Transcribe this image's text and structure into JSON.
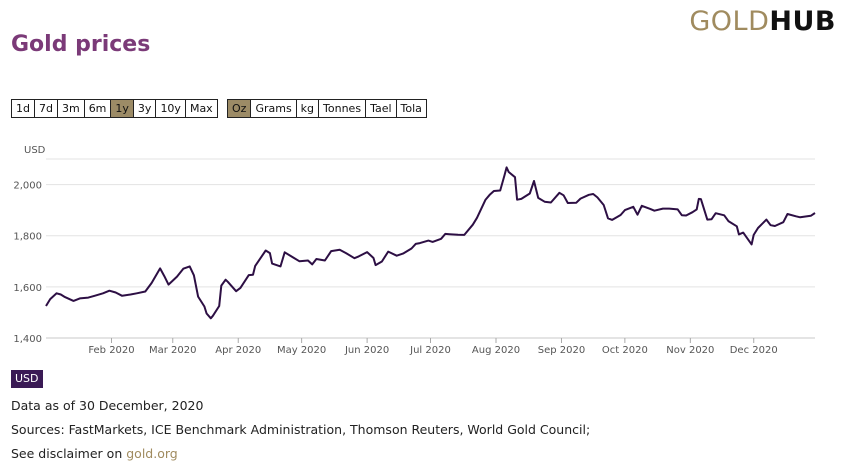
{
  "brand": {
    "gold": "GOLD",
    "hub": "HUB"
  },
  "title": "Gold prices",
  "time_ranges": [
    "1d",
    "7d",
    "3m",
    "6m",
    "1y",
    "3y",
    "10y",
    "Max"
  ],
  "active_time_range": "1y",
  "units": [
    "Oz",
    "Grams",
    "kg",
    "Tonnes",
    "Tael",
    "Tola"
  ],
  "active_unit": "Oz",
  "currency_badge": "USD",
  "data_as_of": "Data as of 30 December, 2020",
  "sources": "Sources: FastMarkets, ICE Benchmark Administration, Thomson Reuters, World Gold Council;",
  "disclaimer_prefix": "See disclaimer on",
  "disclaimer_link": "gold.org",
  "colors": {
    "line": "#2d0f44",
    "accent": "#9c8b66",
    "title": "#7b3a78"
  },
  "chart_data": {
    "type": "line",
    "ylabel": "USD",
    "ylim": [
      1400,
      2100
    ],
    "yticks": [
      1400,
      1600,
      1800,
      2000
    ],
    "ytick_labels": [
      "1,400",
      "1,600",
      "1,800",
      "2,000"
    ],
    "xlim": [
      "2020-01-01",
      "2020-12-30"
    ],
    "xticks": [
      {
        "date": "2020-02-01",
        "label": "Feb 2020"
      },
      {
        "date": "2020-03-01",
        "label": "Mar 2020"
      },
      {
        "date": "2020-04-01",
        "label": "Apr 2020"
      },
      {
        "date": "2020-05-01",
        "label": "May 2020"
      },
      {
        "date": "2020-06-01",
        "label": "Jun 2020"
      },
      {
        "date": "2020-07-01",
        "label": "Jul 2020"
      },
      {
        "date": "2020-08-01",
        "label": "Aug 2020"
      },
      {
        "date": "2020-09-01",
        "label": "Sep 2020"
      },
      {
        "date": "2020-10-01",
        "label": "Oct 2020"
      },
      {
        "date": "2020-11-01",
        "label": "Nov 2020"
      },
      {
        "date": "2020-12-01",
        "label": "Dec 2020"
      }
    ],
    "series": [
      {
        "name": "Gold price (USD/oz)",
        "points": [
          [
            "2020-01-01",
            1525
          ],
          [
            "2020-01-03",
            1552
          ],
          [
            "2020-01-06",
            1575
          ],
          [
            "2020-01-08",
            1570
          ],
          [
            "2020-01-10",
            1560
          ],
          [
            "2020-01-14",
            1545
          ],
          [
            "2020-01-17",
            1555
          ],
          [
            "2020-01-21",
            1558
          ],
          [
            "2020-01-24",
            1565
          ],
          [
            "2020-01-28",
            1575
          ],
          [
            "2020-01-31",
            1585
          ],
          [
            "2020-02-03",
            1578
          ],
          [
            "2020-02-06",
            1565
          ],
          [
            "2020-02-10",
            1570
          ],
          [
            "2020-02-13",
            1575
          ],
          [
            "2020-02-17",
            1582
          ],
          [
            "2020-02-20",
            1615
          ],
          [
            "2020-02-24",
            1672
          ],
          [
            "2020-02-26",
            1642
          ],
          [
            "2020-02-28",
            1609
          ],
          [
            "2020-03-03",
            1640
          ],
          [
            "2020-03-06",
            1671
          ],
          [
            "2020-03-09",
            1680
          ],
          [
            "2020-03-11",
            1645
          ],
          [
            "2020-03-13",
            1562
          ],
          [
            "2020-03-16",
            1523
          ],
          [
            "2020-03-17",
            1496
          ],
          [
            "2020-03-19",
            1477
          ],
          [
            "2020-03-20",
            1487
          ],
          [
            "2020-03-23",
            1525
          ],
          [
            "2020-03-24",
            1605
          ],
          [
            "2020-03-26",
            1628
          ],
          [
            "2020-03-27",
            1620
          ],
          [
            "2020-03-31",
            1583
          ],
          [
            "2020-04-02",
            1596
          ],
          [
            "2020-04-06",
            1646
          ],
          [
            "2020-04-08",
            1647
          ],
          [
            "2020-04-09",
            1682
          ],
          [
            "2020-04-14",
            1742
          ],
          [
            "2020-04-16",
            1732
          ],
          [
            "2020-04-17",
            1691
          ],
          [
            "2020-04-21",
            1680
          ],
          [
            "2020-04-23",
            1735
          ],
          [
            "2020-04-27",
            1715
          ],
          [
            "2020-04-30",
            1700
          ],
          [
            "2020-05-04",
            1703
          ],
          [
            "2020-05-06",
            1688
          ],
          [
            "2020-05-08",
            1709
          ],
          [
            "2020-05-12",
            1703
          ],
          [
            "2020-05-15",
            1740
          ],
          [
            "2020-05-19",
            1745
          ],
          [
            "2020-05-22",
            1732
          ],
          [
            "2020-05-26",
            1712
          ],
          [
            "2020-05-28",
            1719
          ],
          [
            "2020-06-01",
            1736
          ],
          [
            "2020-06-04",
            1713
          ],
          [
            "2020-06-05",
            1685
          ],
          [
            "2020-06-08",
            1699
          ],
          [
            "2020-06-11",
            1738
          ],
          [
            "2020-06-15",
            1722
          ],
          [
            "2020-06-18",
            1730
          ],
          [
            "2020-06-22",
            1750
          ],
          [
            "2020-06-24",
            1768
          ],
          [
            "2020-06-26",
            1771
          ],
          [
            "2020-06-30",
            1781
          ],
          [
            "2020-07-02",
            1776
          ],
          [
            "2020-07-06",
            1788
          ],
          [
            "2020-07-08",
            1807
          ],
          [
            "2020-07-10",
            1806
          ],
          [
            "2020-07-14",
            1804
          ],
          [
            "2020-07-17",
            1803
          ],
          [
            "2020-07-21",
            1843
          ],
          [
            "2020-07-23",
            1870
          ],
          [
            "2020-07-27",
            1940
          ],
          [
            "2020-07-29",
            1960
          ],
          [
            "2020-07-31",
            1975
          ],
          [
            "2020-08-03",
            1977
          ],
          [
            "2020-08-05",
            2035
          ],
          [
            "2020-08-06",
            2067
          ],
          [
            "2020-08-07",
            2049
          ],
          [
            "2020-08-10",
            2029
          ],
          [
            "2020-08-11",
            1941
          ],
          [
            "2020-08-13",
            1944
          ],
          [
            "2020-08-17",
            1965
          ],
          [
            "2020-08-19",
            2014
          ],
          [
            "2020-08-21",
            1948
          ],
          [
            "2020-08-24",
            1933
          ],
          [
            "2020-08-27",
            1930
          ],
          [
            "2020-08-31",
            1968
          ],
          [
            "2020-09-02",
            1958
          ],
          [
            "2020-09-04",
            1928
          ],
          [
            "2020-09-08",
            1929
          ],
          [
            "2020-09-10",
            1945
          ],
          [
            "2020-09-14",
            1960
          ],
          [
            "2020-09-16",
            1963
          ],
          [
            "2020-09-18",
            1950
          ],
          [
            "2020-09-21",
            1920
          ],
          [
            "2020-09-23",
            1868
          ],
          [
            "2020-09-25",
            1862
          ],
          [
            "2020-09-29",
            1881
          ],
          [
            "2020-10-01",
            1900
          ],
          [
            "2020-10-05",
            1913
          ],
          [
            "2020-10-07",
            1882
          ],
          [
            "2020-10-09",
            1917
          ],
          [
            "2020-10-13",
            1905
          ],
          [
            "2020-10-15",
            1898
          ],
          [
            "2020-10-19",
            1906
          ],
          [
            "2020-10-22",
            1906
          ],
          [
            "2020-10-26",
            1903
          ],
          [
            "2020-10-28",
            1880
          ],
          [
            "2020-10-30",
            1879
          ],
          [
            "2020-11-02",
            1892
          ],
          [
            "2020-11-04",
            1903
          ],
          [
            "2020-11-05",
            1944
          ],
          [
            "2020-11-06",
            1943
          ],
          [
            "2020-11-09",
            1863
          ],
          [
            "2020-11-11",
            1864
          ],
          [
            "2020-11-13",
            1888
          ],
          [
            "2020-11-17",
            1880
          ],
          [
            "2020-11-19",
            1857
          ],
          [
            "2020-11-23",
            1837
          ],
          [
            "2020-11-24",
            1805
          ],
          [
            "2020-11-26",
            1812
          ],
          [
            "2020-11-30",
            1766
          ],
          [
            "2020-12-01",
            1803
          ],
          [
            "2020-12-03",
            1830
          ],
          [
            "2020-12-07",
            1863
          ],
          [
            "2020-12-09",
            1841
          ],
          [
            "2020-12-11",
            1838
          ],
          [
            "2020-12-15",
            1853
          ],
          [
            "2020-12-17",
            1885
          ],
          [
            "2020-12-21",
            1876
          ],
          [
            "2020-12-23",
            1872
          ],
          [
            "2020-12-28",
            1878
          ],
          [
            "2020-12-30",
            1889
          ]
        ]
      }
    ]
  }
}
